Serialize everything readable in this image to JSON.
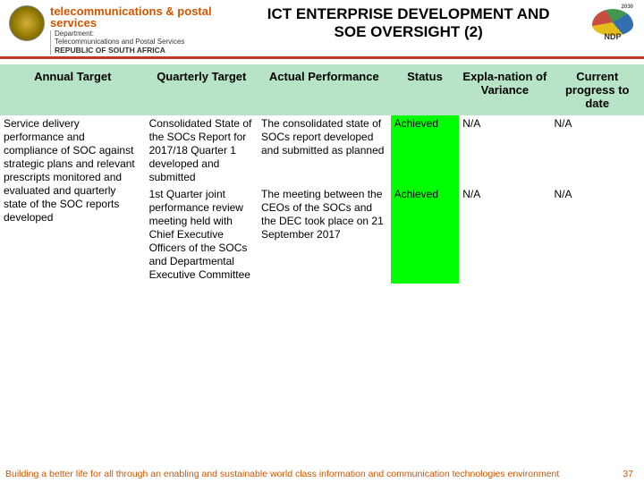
{
  "header": {
    "dept_title": "telecommunications & postal services",
    "dept_line1": "Department:",
    "dept_line2": "Telecommunications and Postal Services",
    "dept_line3": "REPUBLIC OF SOUTH AFRICA",
    "slide_title_l1": "ICT ENTERPRISE DEVELOPMENT AND",
    "slide_title_l2": "SOE OVERSIGHT (2)",
    "ndp_label": "NDP",
    "ndp_year": "2030"
  },
  "columns": {
    "c0": "Annual Target",
    "c1": "Quarterly Target",
    "c2": "Actual Performance",
    "c3": "Status",
    "c4": "Expla-nation of Variance",
    "c5": "Current progress to date"
  },
  "annual_target": "Service delivery performance and compliance of SOC against strategic plans and relevant prescripts monitored and evaluated and quarterly state of the SOC reports developed",
  "rows": [
    {
      "quarterly": "Consolidated State of the SOCs Report for 2017/18 Quarter 1 developed and submitted",
      "actual": "The consolidated state of SOCs report developed and submitted as planned",
      "status": "Achieved",
      "explanation": "N/A",
      "progress": "N/A"
    },
    {
      "quarterly": "1st Quarter joint performance review meeting held with Chief Executive Officers of the SOCs and Departmental Executive Committee",
      "actual": "The meeting between the CEOs of the SOCs and the DEC took place on 21 September 2017",
      "status": "Achieved",
      "explanation": "N/A",
      "progress": "N/A"
    }
  ],
  "footer": {
    "text": "Building a better life for all through an enabling and sustainable world class information and communication technologies environment",
    "page": "37"
  },
  "colors": {
    "header_green": "#b7e4c7",
    "status_green": "#00ff00",
    "accent_orange": "#d35400",
    "rule_red": "#c0392b"
  }
}
